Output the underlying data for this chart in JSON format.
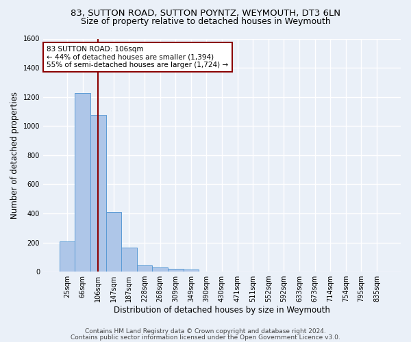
{
  "title_line1": "83, SUTTON ROAD, SUTTON POYNTZ, WEYMOUTH, DT3 6LN",
  "title_line2": "Size of property relative to detached houses in Weymouth",
  "xlabel": "Distribution of detached houses by size in Weymouth",
  "ylabel": "Number of detached properties",
  "categories": [
    "25sqm",
    "66sqm",
    "106sqm",
    "147sqm",
    "187sqm",
    "228sqm",
    "268sqm",
    "309sqm",
    "349sqm",
    "390sqm",
    "430sqm",
    "471sqm",
    "511sqm",
    "552sqm",
    "592sqm",
    "633sqm",
    "673sqm",
    "714sqm",
    "754sqm",
    "795sqm",
    "835sqm"
  ],
  "values": [
    205,
    1225,
    1075,
    410,
    163,
    45,
    27,
    18,
    14,
    0,
    0,
    0,
    0,
    0,
    0,
    0,
    0,
    0,
    0,
    0,
    0
  ],
  "bar_color": "#aec6e8",
  "bar_edge_color": "#5b9bd5",
  "vline_x": 2,
  "vline_color": "#8B0000",
  "annotation_line1": "83 SUTTON ROAD: 106sqm",
  "annotation_line2": "← 44% of detached houses are smaller (1,394)",
  "annotation_line3": "55% of semi-detached houses are larger (1,724) →",
  "annotation_box_color": "#ffffff",
  "annotation_box_edge_color": "#8B0000",
  "ylim": [
    0,
    1600
  ],
  "yticks": [
    0,
    200,
    400,
    600,
    800,
    1000,
    1200,
    1400,
    1600
  ],
  "footer_line1": "Contains HM Land Registry data © Crown copyright and database right 2024.",
  "footer_line2": "Contains public sector information licensed under the Open Government Licence v3.0.",
  "bg_color": "#eaf0f8",
  "plot_bg_color": "#eaf0f8",
  "grid_color": "#ffffff",
  "title_fontsize": 9.5,
  "subtitle_fontsize": 9,
  "axis_label_fontsize": 8.5,
  "tick_fontsize": 7,
  "annotation_fontsize": 7.5,
  "footer_fontsize": 6.5
}
